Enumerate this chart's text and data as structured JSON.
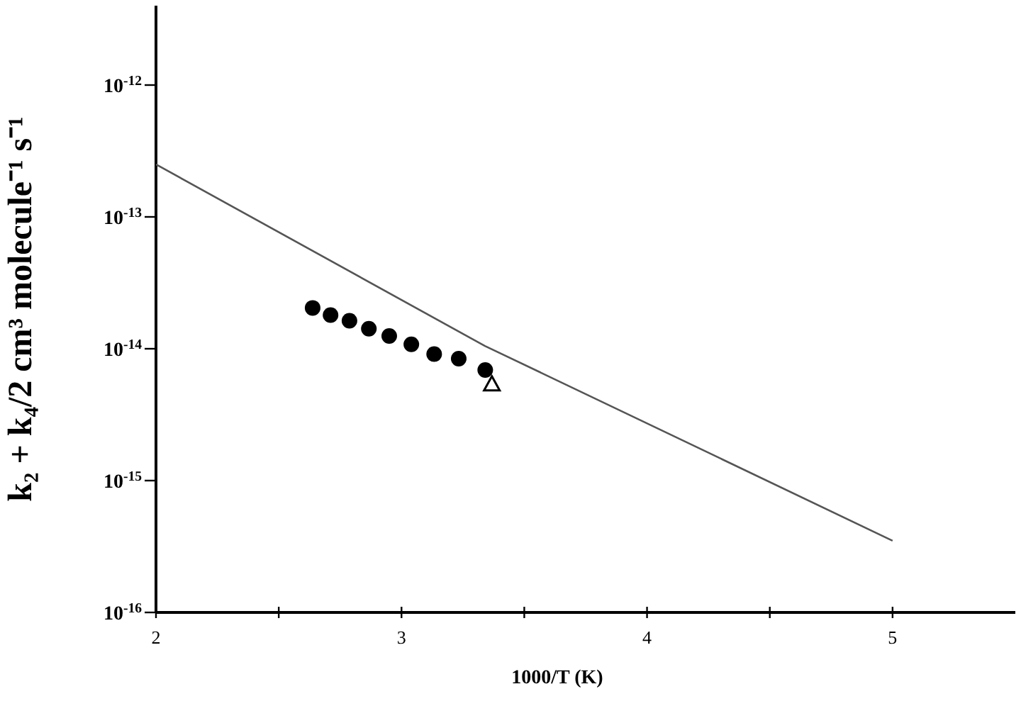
{
  "chart_data": {
    "type": "scatter",
    "xlabel": "1000/T (K)",
    "ylabel": "k₂ + k₄/2 cm³ molecule⁻¹ s⁻¹",
    "log": "y",
    "grid": false,
    "xlim": [
      2,
      5.5
    ],
    "xticks": [
      2,
      {
        "value": 2.5,
        "label": null
      },
      3,
      {
        "value": 3.5,
        "label": null
      },
      4,
      {
        "value": 4.5,
        "label": null
      },
      5
    ],
    "ylim": [
      1e-16,
      4e-12
    ],
    "yticks": [
      {
        "value": 1e-16,
        "label": "10$^{-16}$"
      },
      {
        "value": 1e-15,
        "label": "10$^{-15}$"
      },
      {
        "value": 1e-14,
        "label": "10$^{-14}$"
      },
      {
        "value": 1e-13,
        "label": "10$^{-13}$"
      },
      {
        "value": 1e-12,
        "label": "10$^{-12}$"
      }
    ],
    "series": [
      {
        "type": "line",
        "color": "#555555",
        "marker": "none",
        "line_style": "solid",
        "x": [
          2,
          3.34,
          5
        ],
        "values": [
          2.5e-13,
          1.05e-14,
          3.5e-16
        ]
      },
      {
        "color": "#000000",
        "marker": "circle",
        "x": [
          2.638,
          2.711,
          2.788,
          2.867,
          2.95,
          3.04,
          3.133,
          3.233,
          3.341
        ],
        "values": [
          2.04e-14,
          1.8e-14,
          1.63e-14,
          1.42e-14,
          1.25e-14,
          1.08e-14,
          9.1e-15,
          8.4e-15,
          6.9e-15
        ]
      },
      {
        "color": "#000000",
        "marker": "triangle",
        "x": [
          3.368
        ],
        "values": [
          5.4e-15
        ]
      }
    ]
  }
}
